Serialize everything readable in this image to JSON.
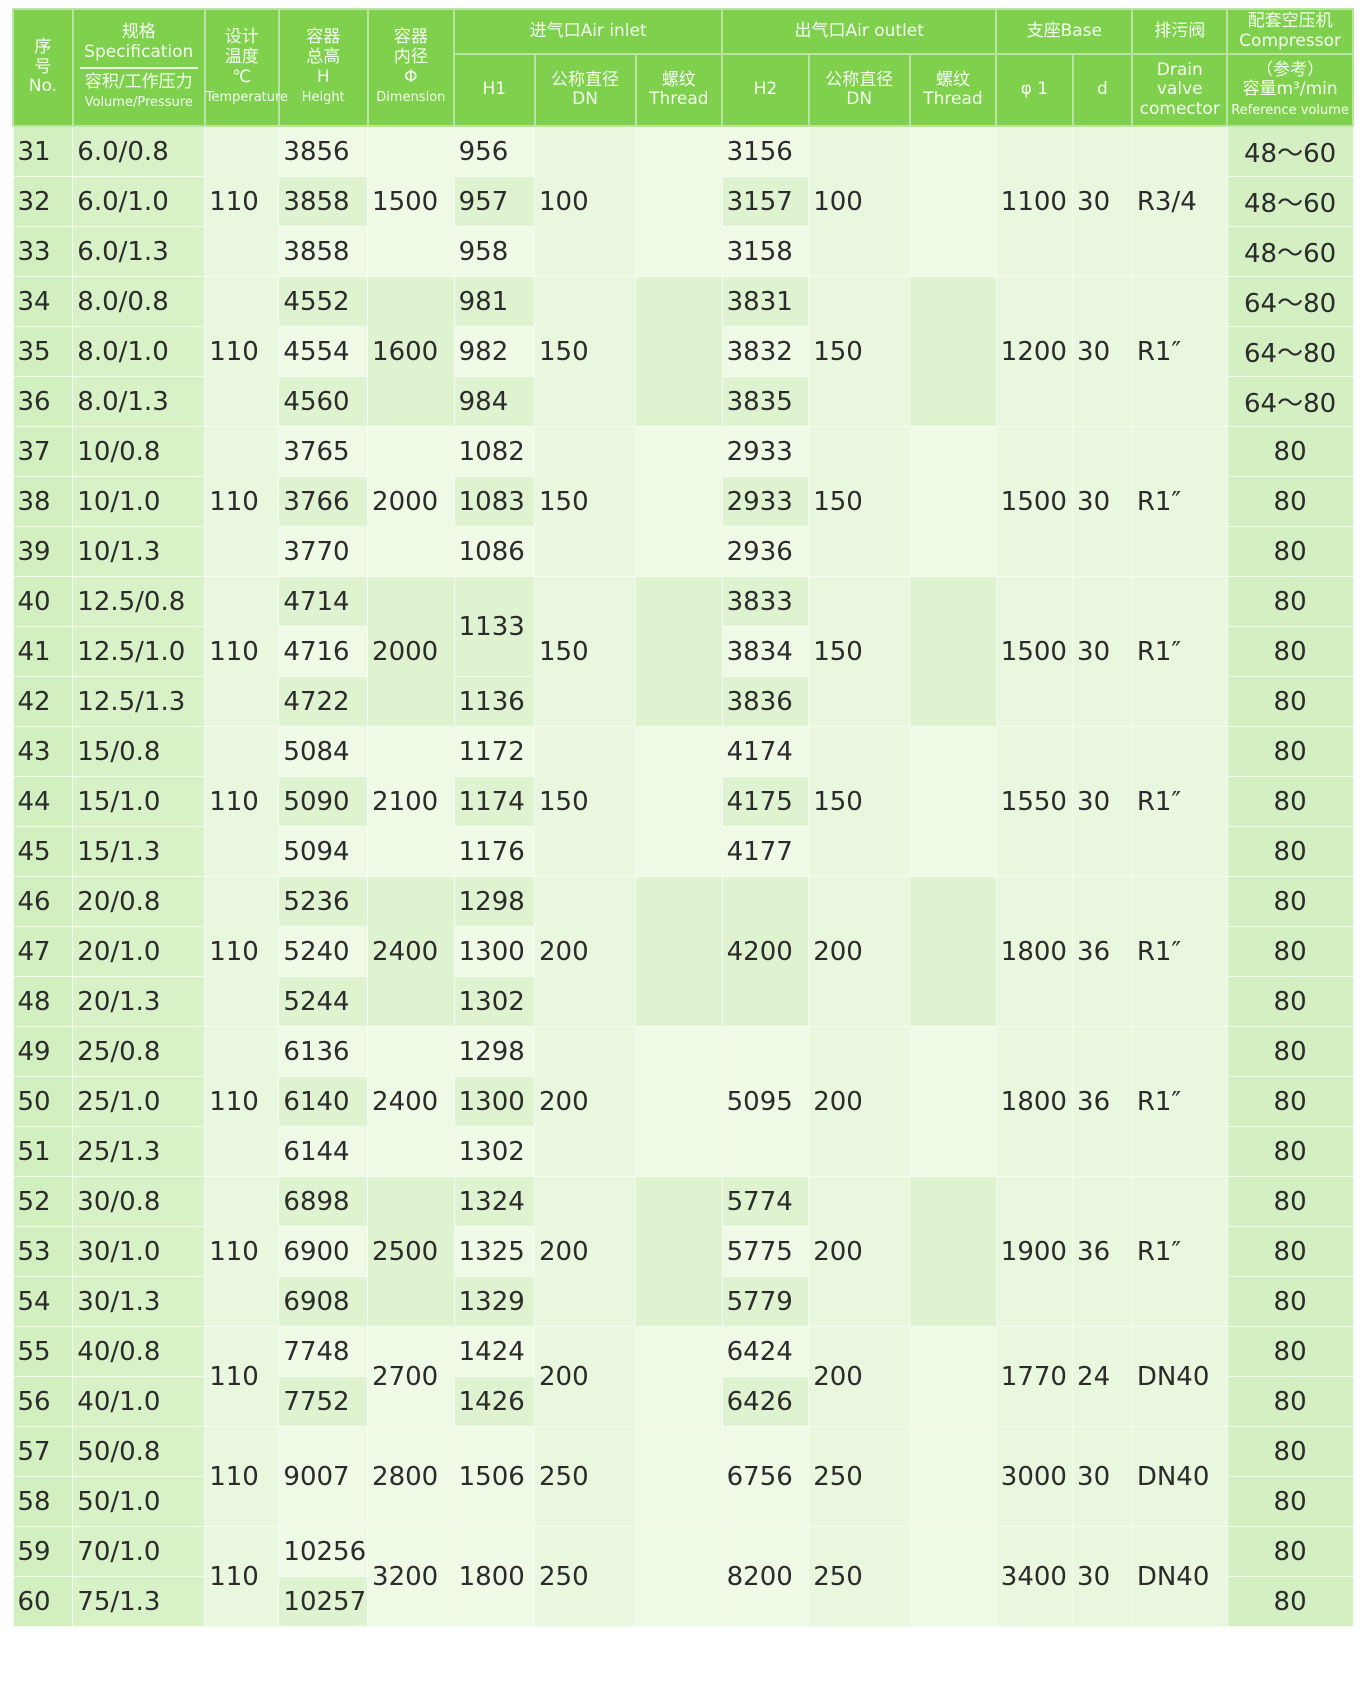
{
  "header": {
    "no": [
      "序",
      "号",
      "No."
    ],
    "spec_title": "规格Specification",
    "spec_sub": "容积/工作压力",
    "spec_en": "Volume/Pressure",
    "temp": [
      "设计",
      "温度",
      "℃",
      "Temperature"
    ],
    "height": [
      "容器",
      "总高",
      "H",
      "Height"
    ],
    "dimension": [
      "容器",
      "内径",
      "Φ",
      "Dimension"
    ],
    "air_inlet": "进气口Air inlet",
    "h1": "H1",
    "dn_cn": "公称直径",
    "dn": "DN",
    "thread_cn": "螺纹",
    "thread": "Thread",
    "air_outlet": "出气口Air outlet",
    "h2": "H2",
    "base": "支座Base",
    "phi1": "φ 1",
    "d": "d",
    "drain_cn": "排污阀",
    "drain_en": [
      "Drain",
      "valve",
      "comector"
    ],
    "comp_cn": "配套空压机",
    "comp_en": "Compressor",
    "comp_ref": "（参考）",
    "comp_unit": "容量m³/min",
    "comp_refvol": "Reference volume"
  },
  "groups": [
    {
      "temp": "110",
      "dim": "1500",
      "dn_in": "100",
      "dn_out": "100",
      "phi1": "1100",
      "d": "30",
      "drain": "R3/4",
      "rows": [
        [
          "31",
          "6.0/0.8",
          "3856",
          "956",
          "3156",
          "48～60"
        ],
        [
          "32",
          "6.0/1.0",
          "3858",
          "957",
          "3157",
          "48～60"
        ],
        [
          "33",
          "6.0/1.3",
          "3858",
          "958",
          "3158",
          "48～60"
        ]
      ]
    },
    {
      "temp": "110",
      "dim": "1600",
      "dn_in": "150",
      "dn_out": "150",
      "phi1": "1200",
      "d": "30",
      "drain": "R1″",
      "rows": [
        [
          "34",
          "8.0/0.8",
          "4552",
          "981",
          "3831",
          "64～80"
        ],
        [
          "35",
          "8.0/1.0",
          "4554",
          "982",
          "3832",
          "64～80"
        ],
        [
          "36",
          "8.0/1.3",
          "4560",
          "984",
          "3835",
          "64～80"
        ]
      ]
    },
    {
      "temp": "110",
      "dim": "2000",
      "dn_in": "150",
      "dn_out": "150",
      "phi1": "1500",
      "d": "30",
      "drain": "R1″",
      "rows": [
        [
          "37",
          "10/0.8",
          "3765",
          "1082",
          "2933",
          "80"
        ],
        [
          "38",
          "10/1.0",
          "3766",
          "1083",
          "2933",
          "80"
        ],
        [
          "39",
          "10/1.3",
          "3770",
          "1086",
          "2936",
          "80"
        ]
      ]
    },
    {
      "temp": "110",
      "dim": "2000",
      "dn_in": "150",
      "dn_out": "150",
      "phi1": "1500",
      "d": "30",
      "drain": "R1″",
      "rows": [
        [
          "40",
          "12.5/0.8",
          "4714",
          "1133",
          "3833",
          "80"
        ],
        [
          "41",
          "12.5/1.0",
          "4716",
          null,
          "3834",
          "80"
        ],
        [
          "42",
          "12.5/1.3",
          "4722",
          "1136",
          "3836",
          "80"
        ]
      ]
    },
    {
      "temp": "110",
      "dim": "2100",
      "dn_in": "150",
      "dn_out": "150",
      "phi1": "1550",
      "d": "30",
      "drain": "R1″",
      "rows": [
        [
          "43",
          "15/0.8",
          "5084",
          "1172",
          "4174",
          "80"
        ],
        [
          "44",
          "15/1.0",
          "5090",
          "1174",
          "4175",
          "80"
        ],
        [
          "45",
          "15/1.3",
          "5094",
          "1176",
          "4177",
          "80"
        ]
      ]
    },
    {
      "temp": "110",
      "dim": "2400",
      "dn_in": "200",
      "dn_out": "200",
      "phi1": "1800",
      "d": "36",
      "drain": "R1″",
      "rows": [
        [
          "46",
          "20/0.8",
          "5236",
          "1298",
          "4200",
          "80"
        ],
        [
          "47",
          "20/1.0",
          "5240",
          "1300",
          null,
          "80"
        ],
        [
          "48",
          "20/1.3",
          "5244",
          "1302",
          null,
          "80"
        ]
      ]
    },
    {
      "temp": "110",
      "dim": "2400",
      "dn_in": "200",
      "dn_out": "200",
      "phi1": "1800",
      "d": "36",
      "drain": "R1″",
      "rows": [
        [
          "49",
          "25/0.8",
          "6136",
          "1298",
          "5095",
          "80"
        ],
        [
          "50",
          "25/1.0",
          "6140",
          "1300",
          null,
          "80"
        ],
        [
          "51",
          "25/1.3",
          "6144",
          "1302",
          null,
          "80"
        ]
      ]
    },
    {
      "temp": "110",
      "dim": "2500",
      "dn_in": "200",
      "dn_out": "200",
      "phi1": "1900",
      "d": "36",
      "drain": "R1″",
      "rows": [
        [
          "52",
          "30/0.8",
          "6898",
          "1324",
          "5774",
          "80"
        ],
        [
          "53",
          "30/1.0",
          "6900",
          "1325",
          "5775",
          "80"
        ],
        [
          "54",
          "30/1.3",
          "6908",
          "1329",
          "5779",
          "80"
        ]
      ]
    },
    {
      "temp": "110",
      "dim": "2700",
      "dn_in": "200",
      "dn_out": "200",
      "phi1": "1770",
      "d": "24",
      "drain": "DN40",
      "rows": [
        [
          "55",
          "40/0.8",
          "7748",
          "1424",
          "6424",
          "80"
        ],
        [
          "56",
          "40/1.0",
          "7752",
          "1426",
          "6426",
          "80"
        ]
      ]
    },
    {
      "temp": "110",
      "dim": "2800",
      "dn_in": "250",
      "dn_out": "250",
      "phi1": "3000",
      "d": "30",
      "drain": "DN40",
      "rows": [
        [
          "57",
          "50/0.8",
          "9007",
          "1506",
          "6756",
          "80"
        ],
        [
          "58",
          "50/1.0",
          null,
          null,
          null,
          "80"
        ]
      ]
    },
    {
      "temp": "110",
      "dim": "3200",
      "dn_in": "250",
      "dn_out": "250",
      "phi1": "3400",
      "d": "30",
      "drain": "DN40",
      "rows": [
        [
          "59",
          "70/1.0",
          "10256",
          "1800",
          "8200",
          "80"
        ],
        [
          "60",
          "75/1.3",
          "10257",
          null,
          null,
          "80"
        ]
      ]
    }
  ]
}
